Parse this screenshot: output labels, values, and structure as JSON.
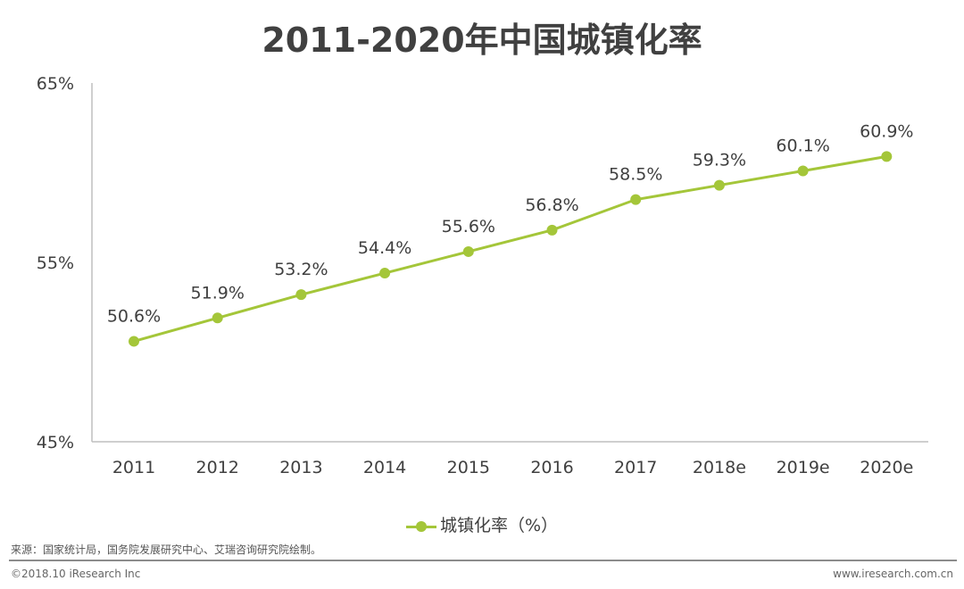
{
  "chart_data": {
    "type": "line",
    "title": "2011-2020年中国城镇化率",
    "categories": [
      "2011",
      "2012",
      "2013",
      "2014",
      "2015",
      "2016",
      "2017",
      "2018e",
      "2019e",
      "2020e"
    ],
    "series": [
      {
        "name": "城镇化率（%）",
        "values": [
          50.6,
          51.9,
          53.2,
          54.4,
          55.6,
          56.8,
          58.5,
          59.3,
          60.1,
          60.9
        ],
        "color": "#a4c639"
      }
    ],
    "data_labels": [
      "50.6%",
      "51.9%",
      "53.2%",
      "54.4%",
      "55.6%",
      "56.8%",
      "58.5%",
      "59.3%",
      "60.1%",
      "60.9%"
    ],
    "ylim": [
      45,
      65
    ],
    "yticks": [
      45,
      55,
      65
    ],
    "ytick_labels": [
      "45%",
      "55%",
      "65%"
    ],
    "xlabel": "",
    "ylabel": "",
    "grid": false,
    "legend_position": "bottom"
  },
  "legend_label": "城镇化率（%）",
  "source": "来源：国家统计局，国务院发展研究中心、艾瑞咨询研究院绘制。",
  "copyright": "©2018.10 iResearch Inc",
  "website": "www.iresearch.com.cn"
}
